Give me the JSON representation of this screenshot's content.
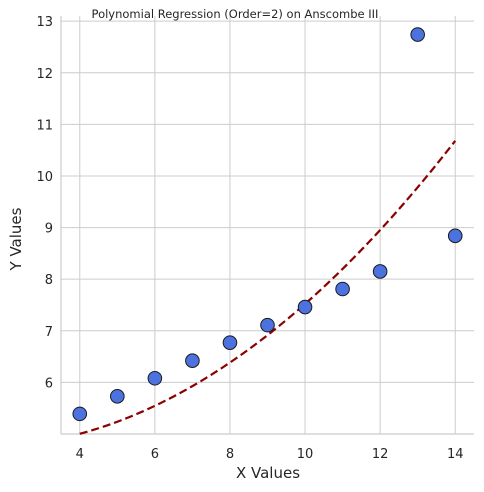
{
  "chart_data": {
    "type": "scatter",
    "title": "Polynomial Regression (Order=2) on Anscombe III",
    "xlabel": "X Values",
    "ylabel": "Y Values",
    "xlim": [
      3.5,
      14.5
    ],
    "ylim": [
      5.0,
      13.1
    ],
    "xticks": [
      4,
      6,
      8,
      10,
      12,
      14
    ],
    "yticks": [
      6,
      7,
      8,
      9,
      10,
      11,
      12,
      13
    ],
    "grid": true,
    "series": [
      {
        "type": "scatter",
        "color": "#4c72e0",
        "edge_color": "#1a1a1a",
        "points": [
          {
            "x": 4,
            "y": 5.39
          },
          {
            "x": 5,
            "y": 5.73
          },
          {
            "x": 6,
            "y": 6.08
          },
          {
            "x": 7,
            "y": 6.42
          },
          {
            "x": 8,
            "y": 6.77
          },
          {
            "x": 9,
            "y": 7.11
          },
          {
            "x": 10,
            "y": 7.46
          },
          {
            "x": 11,
            "y": 7.81
          },
          {
            "x": 12,
            "y": 8.15
          },
          {
            "x": 13,
            "y": 12.74
          },
          {
            "x": 14,
            "y": 8.84
          }
        ]
      },
      {
        "type": "line",
        "style": "dashed",
        "color": "#8b0000",
        "fit": "polynomial order 2",
        "x_range": [
          4,
          14
        ],
        "coefficients": [
          4.81,
          -0.1,
          0.0371
        ]
      }
    ]
  }
}
